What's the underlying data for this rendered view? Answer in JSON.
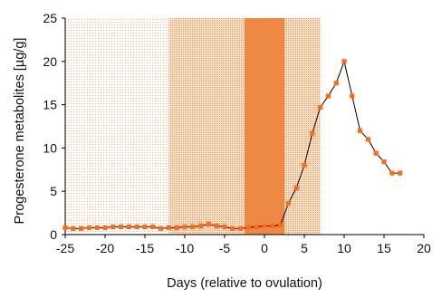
{
  "chart_data": {
    "type": "line",
    "title": "",
    "xlabel": "Days (relative to ovulation)",
    "ylabel": "Progesterone metabolites [µg/g]",
    "xlim": [
      -25,
      20
    ],
    "ylim": [
      0,
      25
    ],
    "x_ticks": [
      -25,
      -20,
      -15,
      -10,
      -5,
      0,
      5,
      10,
      15,
      20
    ],
    "y_ticks": [
      0,
      5,
      10,
      15,
      20,
      25
    ],
    "x_tick_labels": [
      "-25",
      "-20",
      "-15",
      "-10",
      "-5",
      "0",
      "5",
      "10",
      "15",
      "20"
    ],
    "y_tick_labels": [
      "0",
      "5",
      "10",
      "15",
      "20",
      "25"
    ],
    "grid": false,
    "legend": "none",
    "shaded_regions": [
      {
        "x_start": -25,
        "x_end": 7,
        "color": "#f4b37e",
        "density": "sparse"
      },
      {
        "x_start": -12,
        "x_end": 7,
        "color": "#f09a5a",
        "density": "medium"
      },
      {
        "x_start": -2.5,
        "x_end": 2.5,
        "color": "#ee8844",
        "density": "solid"
      }
    ],
    "series": [
      {
        "color": "#000000",
        "marker_color": "#ff6a13",
        "marker": "square",
        "x": [
          -25,
          -24,
          -23,
          -22,
          -21,
          -20,
          -19,
          -18,
          -17,
          -16,
          -15,
          -14,
          -13,
          -12,
          -11,
          -10,
          -9,
          -8,
          -7,
          -6,
          -5,
          -4,
          -3,
          -2,
          -1,
          0,
          1,
          2,
          3,
          4,
          5,
          6,
          7,
          8,
          9,
          10,
          11,
          12,
          13,
          14,
          15,
          16,
          17
        ],
        "y": [
          0.8,
          0.7,
          0.7,
          0.8,
          0.8,
          0.8,
          0.9,
          0.9,
          0.9,
          0.9,
          0.9,
          0.9,
          0.7,
          0.8,
          0.8,
          0.9,
          0.9,
          1.0,
          1.2,
          1.0,
          0.9,
          0.7,
          0.7,
          0.8,
          0.9,
          1.0,
          1.0,
          1.1,
          3.6,
          5.4,
          8.0,
          11.7,
          14.7,
          16.0,
          17.5,
          20.0,
          16.0,
          12.0,
          11.0,
          9.4,
          8.4,
          7.1,
          7.1
        ]
      }
    ]
  }
}
